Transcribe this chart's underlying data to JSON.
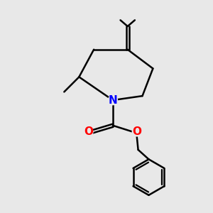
{
  "bg_color": "#e8e8e8",
  "bond_color": "#000000",
  "N_color": "#0000ff",
  "O_color": "#ff0000",
  "line_width": 1.8,
  "figsize": [
    3.0,
    3.0
  ],
  "dpi": 100,
  "xlim": [
    0,
    10
  ],
  "ylim": [
    0,
    10
  ],
  "N_fontsize": 11,
  "O_fontsize": 11
}
